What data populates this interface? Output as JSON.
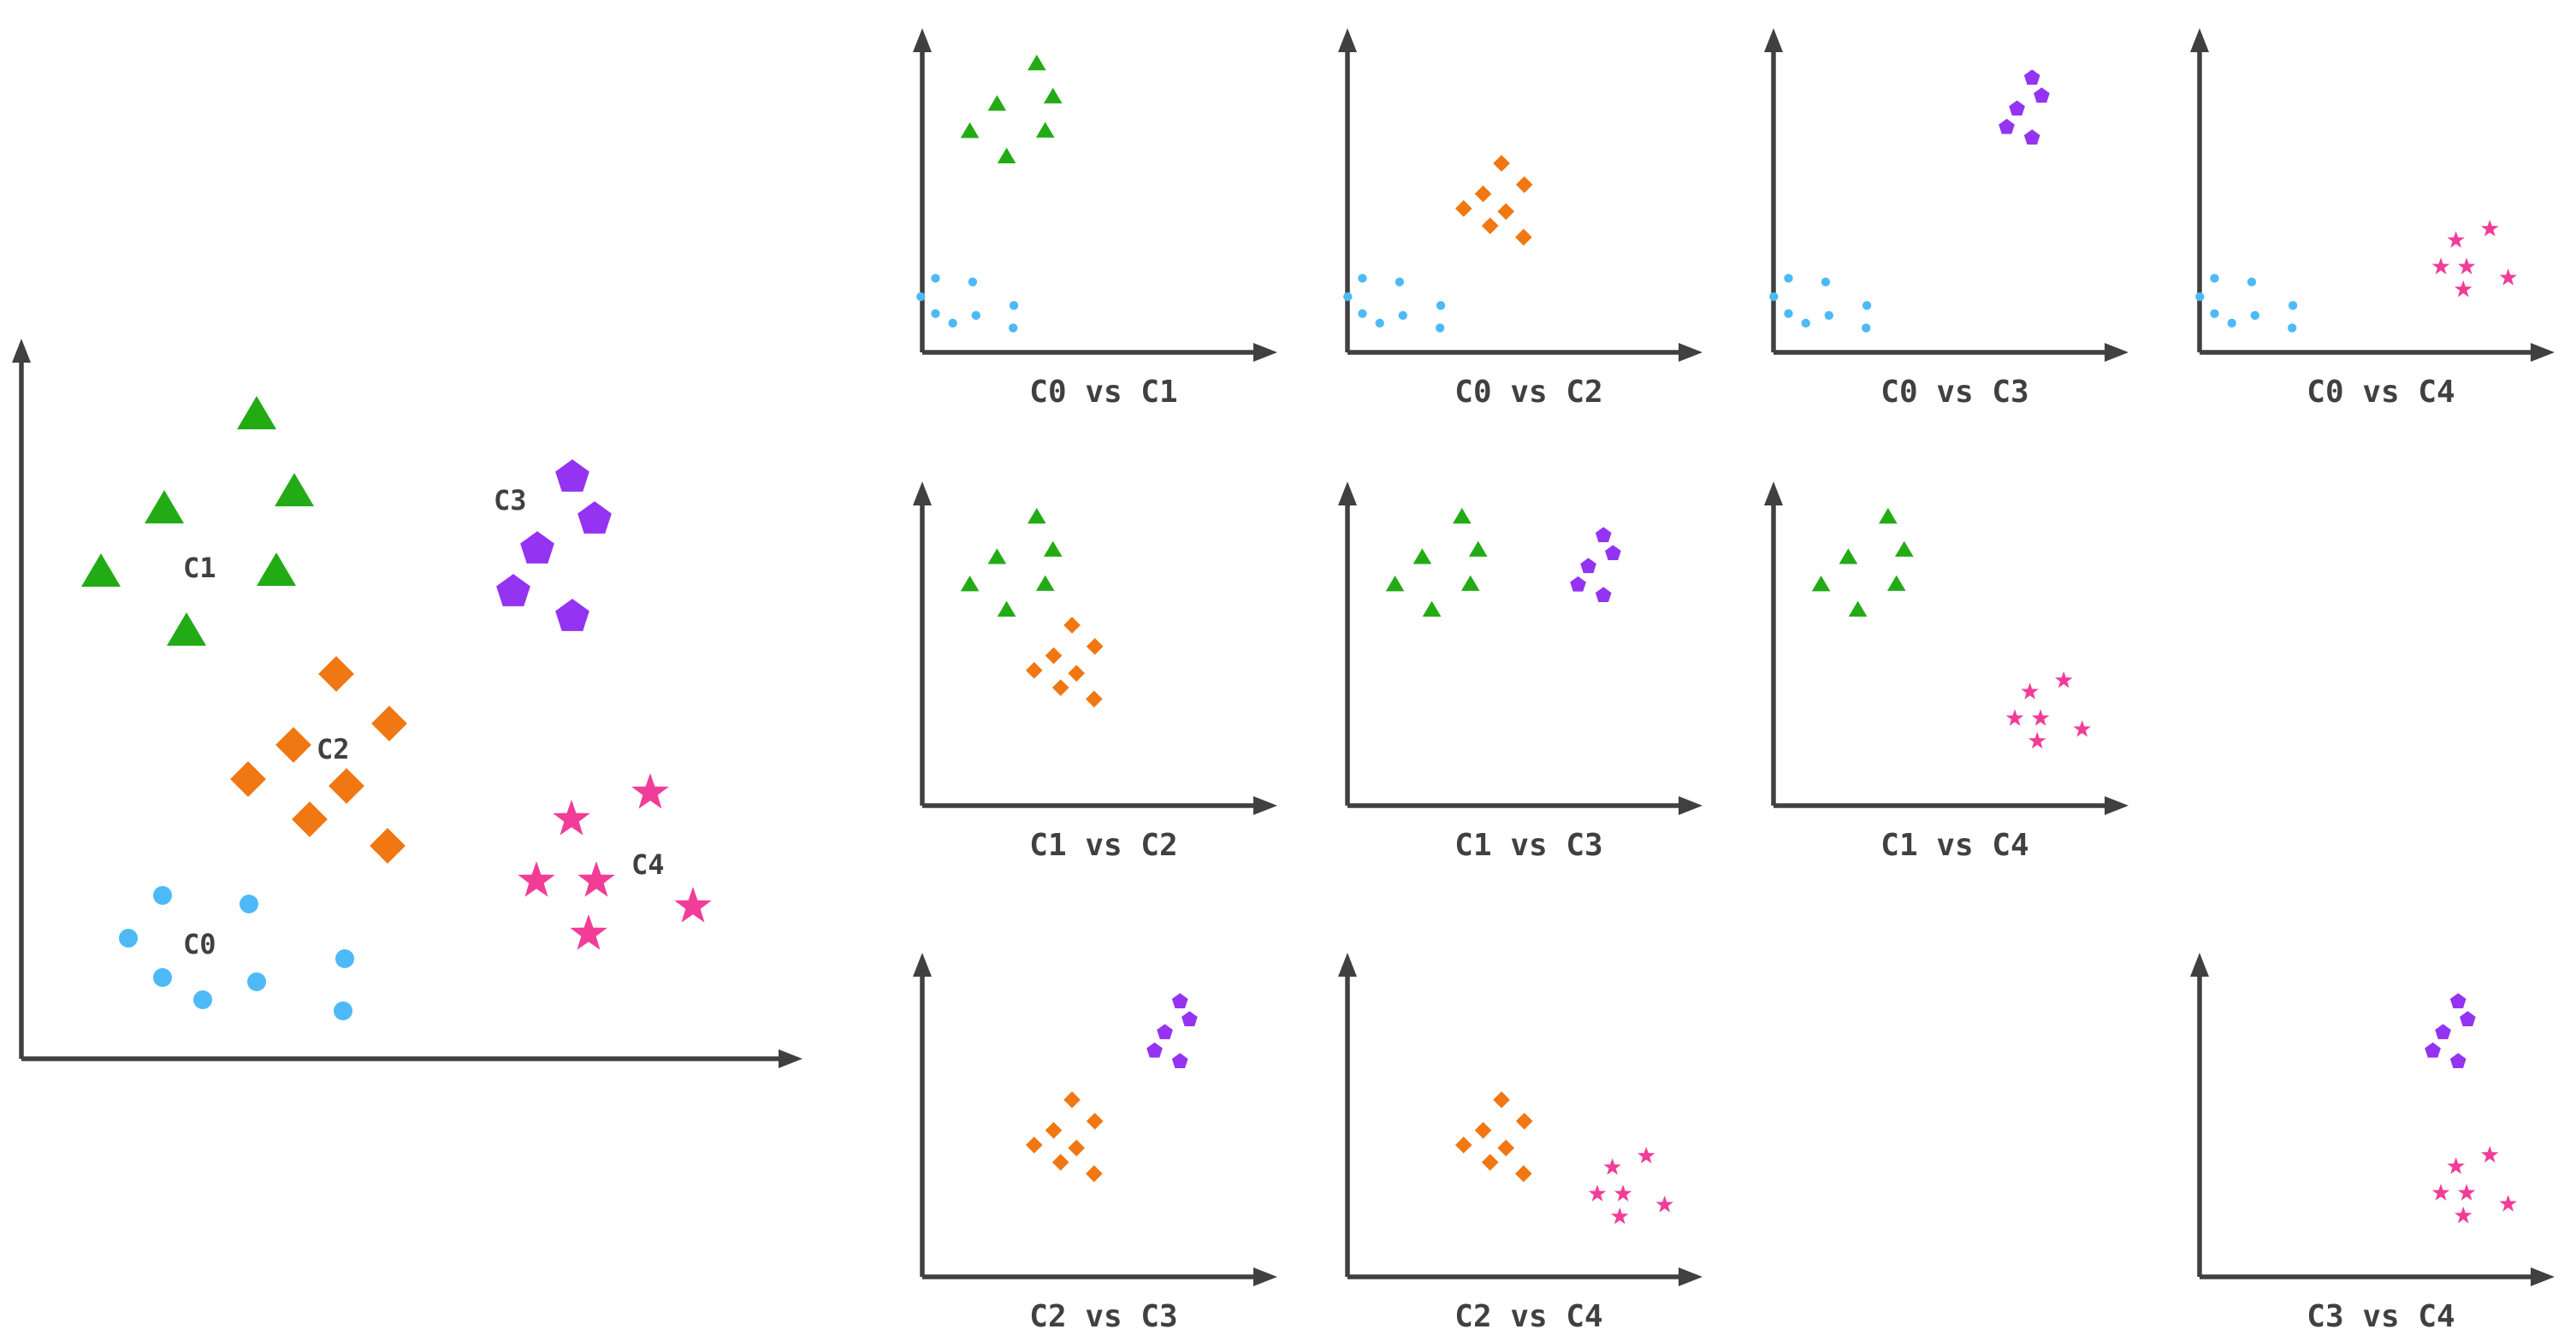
{
  "colors": {
    "axis": "#404040",
    "label": "#404040",
    "C0": "#4dbaf7",
    "C1": "#23ab16",
    "C2": "#f07712",
    "C3": "#9433f1",
    "C4": "#f13d97"
  },
  "clusters": [
    {
      "id": "C0",
      "label": "C0",
      "marker": "circle"
    },
    {
      "id": "C1",
      "label": "C1",
      "marker": "triangle"
    },
    {
      "id": "C2",
      "label": "C2",
      "marker": "diamond"
    },
    {
      "id": "C3",
      "label": "C3",
      "marker": "pentagon"
    },
    {
      "id": "C4",
      "label": "C4",
      "marker": "star"
    }
  ],
  "pairwise_panels": [
    {
      "a": "C0",
      "b": "C1",
      "caption": "C0 vs C1"
    },
    {
      "a": "C0",
      "b": "C2",
      "caption": "C0 vs C2"
    },
    {
      "a": "C0",
      "b": "C3",
      "caption": "C0 vs C3"
    },
    {
      "a": "C0",
      "b": "C4",
      "caption": "C0 vs C4"
    },
    {
      "a": "C1",
      "b": "C2",
      "caption": "C1 vs C2"
    },
    {
      "a": "C1",
      "b": "C3",
      "caption": "C1 vs C3"
    },
    {
      "a": "C1",
      "b": "C4",
      "caption": "C1 vs C4"
    },
    {
      "a": "C2",
      "b": "C3",
      "caption": "C2 vs C3"
    },
    {
      "a": "C2",
      "b": "C4",
      "caption": "C2 vs C4"
    },
    {
      "a": "C3",
      "b": "C4",
      "caption": "C3 vs C4"
    }
  ]
}
